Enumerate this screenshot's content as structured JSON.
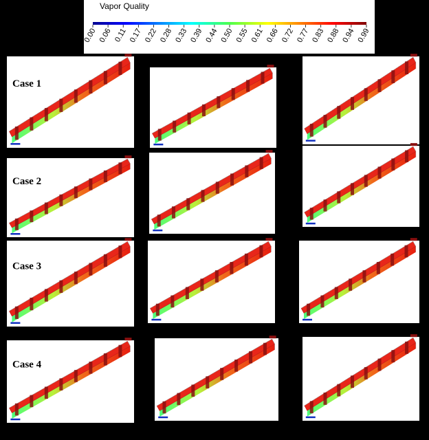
{
  "colorbar": {
    "title": "Vapor Quality",
    "ticks": [
      "0.00",
      "0.06",
      "0.11",
      "0.17",
      "0.22",
      "0.28",
      "0.33",
      "0.39",
      "0.44",
      "0.50",
      "0.55",
      "0.61",
      "0.66",
      "0.72",
      "0.77",
      "0.83",
      "0.88",
      "0.94",
      "0.99"
    ]
  },
  "cases": [
    "Case 1",
    "Case 2",
    "Case 3",
    "Case 4"
  ]
}
